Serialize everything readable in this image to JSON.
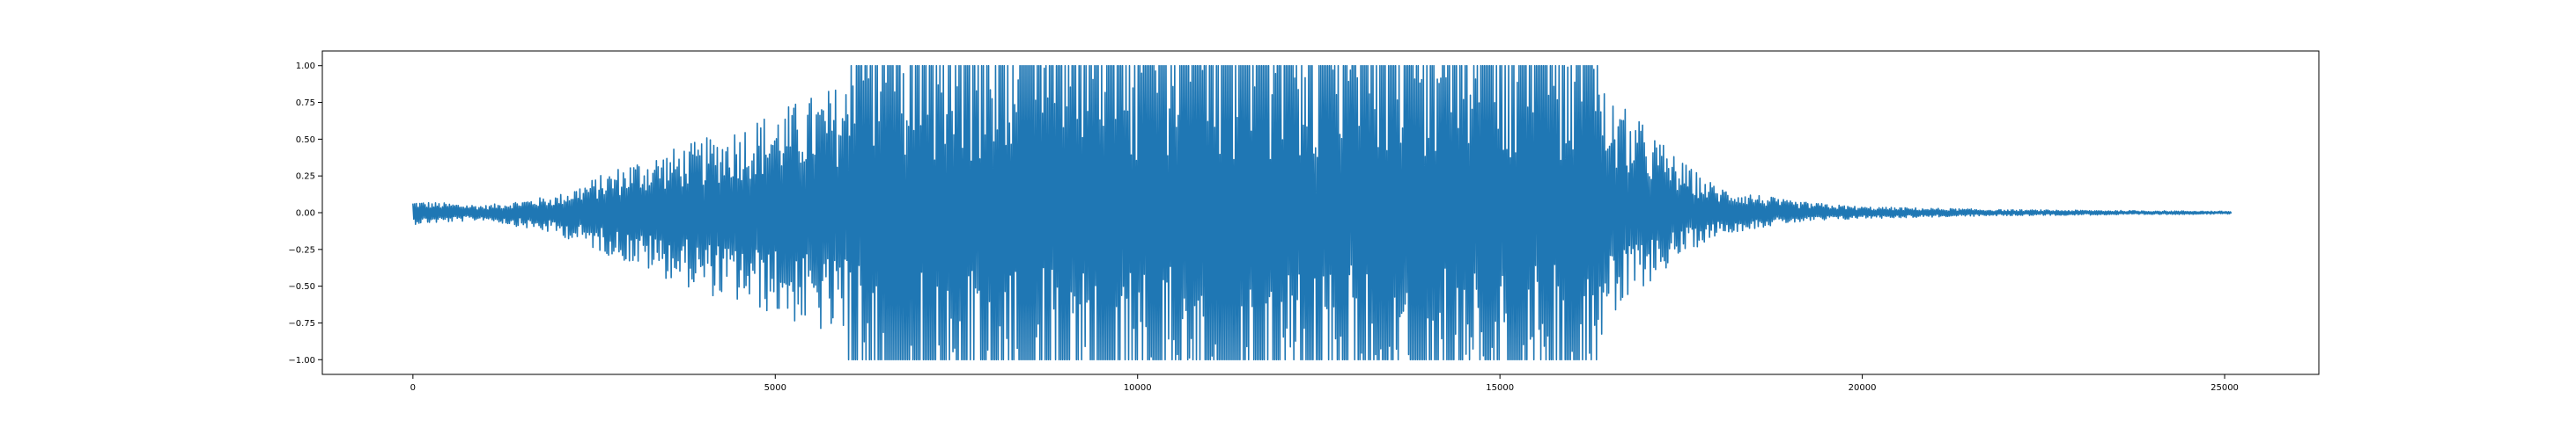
{
  "chart_data": {
    "type": "line",
    "title": "",
    "xlabel": "",
    "ylabel": "",
    "xlim": [
      -1250,
      26300
    ],
    "ylim": [
      -1.1,
      1.1
    ],
    "x_ticks": [
      0,
      5000,
      10000,
      15000,
      20000,
      25000
    ],
    "x_tick_labels": [
      "0",
      "5000",
      "10000",
      "15000",
      "20000",
      "25000"
    ],
    "y_ticks": [
      1.0,
      0.75,
      0.5,
      0.25,
      0.0,
      -0.25,
      -0.5,
      -0.75,
      -1.0
    ],
    "y_tick_labels": [
      "1.00",
      "0.75",
      "0.50",
      "0.25",
      "0.00",
      "−0.25",
      "−0.50",
      "−0.75",
      "−1.00"
    ],
    "grid": false,
    "legend": false,
    "series": [
      {
        "color": "#1f77b4",
        "sample_count": 25100,
        "description_envelope": {
          "x": [
            0,
            1000,
            2000,
            3000,
            4000,
            5000,
            6000,
            6200,
            8000,
            10000,
            12000,
            14000,
            16000,
            16300,
            16500,
            17000,
            17500,
            18000,
            19000,
            20000,
            22000,
            25000
          ],
          "upper": [
            0.08,
            0.05,
            0.12,
            0.35,
            0.5,
            0.7,
            0.9,
            1.0,
            1.0,
            1.0,
            1.0,
            1.0,
            1.0,
            1.0,
            0.8,
            0.6,
            0.35,
            0.18,
            0.08,
            0.04,
            0.02,
            0.01
          ],
          "lower": [
            -0.08,
            -0.05,
            -0.15,
            -0.35,
            -0.55,
            -0.7,
            -0.9,
            -1.0,
            -1.0,
            -1.0,
            -1.0,
            -1.0,
            -1.0,
            -1.0,
            -0.8,
            -0.5,
            -0.3,
            -0.15,
            -0.07,
            -0.04,
            -0.02,
            -0.01
          ]
        }
      }
    ]
  }
}
